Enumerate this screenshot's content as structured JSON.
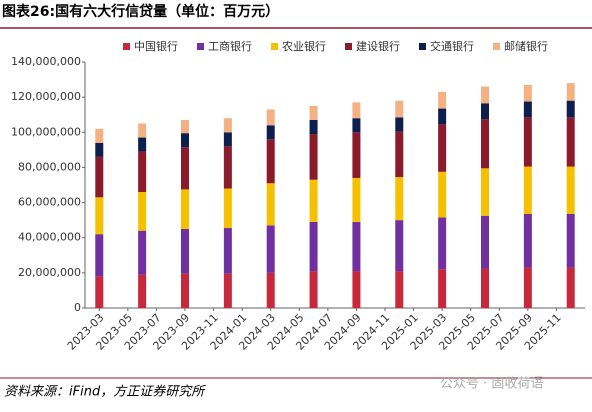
{
  "chart_data": {
    "type": "bar",
    "stacked": true,
    "title": "图表26:国有六大行信贷量（单位：百万元）",
    "source": "资料来源：iFind，方正证券研究所",
    "watermark": "公众号 · 固收荷语",
    "x": [
      "2023-03",
      "2023-06",
      "2023-09",
      "2023-12",
      "2024-03",
      "2024-06",
      "2024-09",
      "2024-12",
      "2025-03",
      "2025-06",
      "2025-09",
      "2025-12"
    ],
    "xlim": [
      "2023-02",
      "2026-01"
    ],
    "xticks": [
      "2023-03",
      "2023-05",
      "2023-07",
      "2023-09",
      "2023-11",
      "2024-01",
      "2024-03",
      "2024-05",
      "2024-07",
      "2024-09",
      "2024-11",
      "2025-01",
      "2025-03",
      "2025-05",
      "2025-07",
      "2025-09",
      "2025-11"
    ],
    "series": [
      {
        "name": "中国银行",
        "color": "#c8283b",
        "values": [
          18000000,
          19000000,
          19500000,
          19500000,
          20000000,
          21000000,
          21000000,
          21000000,
          22000000,
          22500000,
          23000000,
          23000000
        ]
      },
      {
        "name": "工商银行",
        "color": "#7030a0",
        "values": [
          24000000,
          25000000,
          25500000,
          26000000,
          27000000,
          28000000,
          28000000,
          29000000,
          29500000,
          30000000,
          30500000,
          30500000
        ]
      },
      {
        "name": "农业银行",
        "color": "#f5c000",
        "values": [
          21000000,
          22000000,
          22500000,
          22500000,
          24000000,
          24000000,
          25000000,
          24500000,
          26000000,
          27000000,
          27000000,
          27000000
        ]
      },
      {
        "name": "建设银行",
        "color": "#8b1a2b",
        "values": [
          23000000,
          23000000,
          24000000,
          24000000,
          25000000,
          26000000,
          26000000,
          26000000,
          27000000,
          28000000,
          28000000,
          28000000
        ]
      },
      {
        "name": "交通银行",
        "color": "#0d1f4f",
        "values": [
          8000000,
          8000000,
          8000000,
          8000000,
          8000000,
          8000000,
          8000000,
          8000000,
          9000000,
          9000000,
          9000000,
          9500000
        ]
      },
      {
        "name": "邮储银行",
        "color": "#f4b183",
        "values": [
          8000000,
          8000000,
          7500000,
          8000000,
          9000000,
          8000000,
          9000000,
          9500000,
          9500000,
          9500000,
          9500000,
          10000000
        ]
      }
    ],
    "ylim": [
      0,
      140000000
    ],
    "yticks": [
      0,
      {
        "value": 20000000,
        "label": "20,000,000"
      },
      {
        "value": 40000000,
        "label": "40,000,000"
      },
      {
        "value": 60000000,
        "label": "60,000,000"
      },
      {
        "value": 80000000,
        "label": "80,000,000"
      },
      {
        "value": 100000000,
        "label": "100,000,000"
      },
      {
        "value": 120000000,
        "label": "120,000,000"
      },
      {
        "value": 140000000,
        "label": "140,000,000"
      }
    ]
  }
}
